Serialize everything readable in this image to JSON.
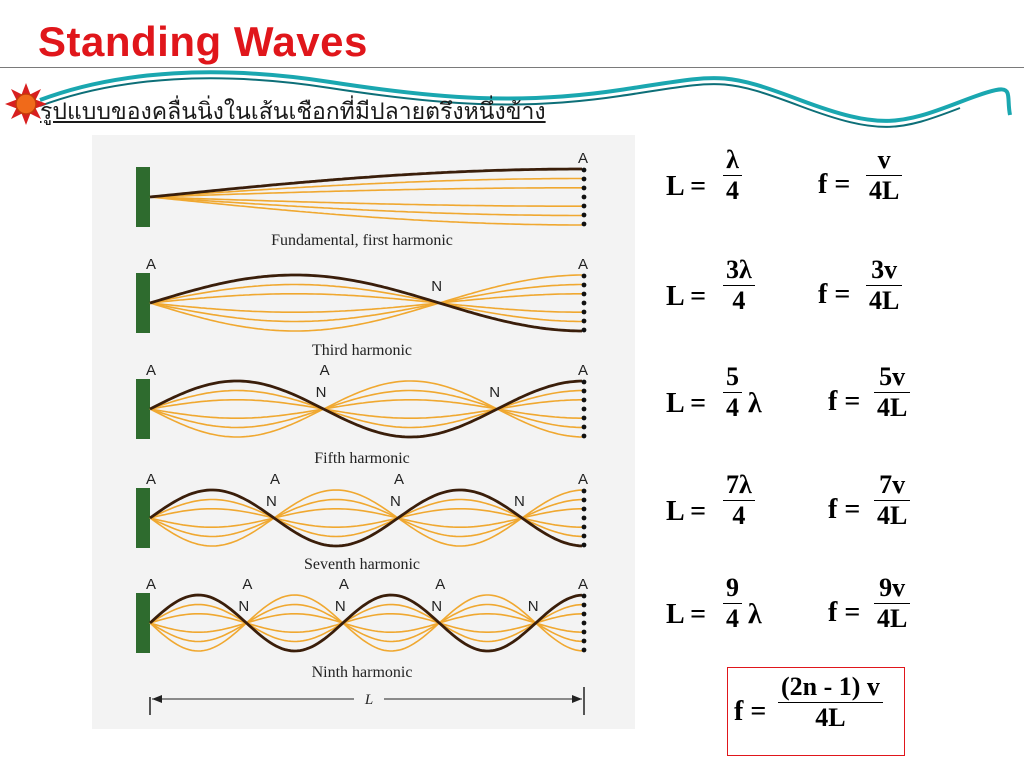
{
  "slide": {
    "title": "Standing Waves",
    "subtitle": "รูปแบบของคลื่นนิ่งในเส้นเชือกที่มีปลายตรึงหนึ่งข้าง",
    "accent_color": "#e0161b",
    "bullet_icon": "sun-icon",
    "decoration_icon": "teal-swirl-ribbon"
  },
  "diagram": {
    "harmonics": [
      {
        "caption": "Fundamental, first harmonic",
        "segments": 1,
        "labels": [
          "A"
        ]
      },
      {
        "caption": "Third harmonic",
        "segments": 3,
        "labels": [
          "A",
          "N",
          "A"
        ]
      },
      {
        "caption": "Fifth harmonic",
        "segments": 5,
        "labels": [
          "A",
          "N",
          "A",
          "N",
          "A"
        ]
      },
      {
        "caption": "Seventh harmonic",
        "segments": 7,
        "labels": [
          "A",
          "N",
          "A",
          "N",
          "A",
          "N",
          "A"
        ]
      },
      {
        "caption": "Ninth harmonic",
        "segments": 9,
        "labels": [
          "A",
          "N",
          "A",
          "N",
          "A",
          "N",
          "A",
          "N",
          "A"
        ]
      }
    ],
    "length_label": "L",
    "colors": {
      "wall": "#2e6b2e",
      "string": "#f0a830",
      "string_dark": "#3a1e0a",
      "dot": "#111111"
    }
  },
  "equations": [
    {
      "L_lhs": "L =",
      "L_num": "λ",
      "L_den": "4",
      "L_suffix": "",
      "f_lhs": "f =",
      "f_num": "v",
      "f_den": "4L"
    },
    {
      "L_lhs": "L =",
      "L_num": "3λ",
      "L_den": "4",
      "L_suffix": "",
      "f_lhs": "f =",
      "f_num": "3v",
      "f_den": "4L"
    },
    {
      "L_lhs": "L =",
      "L_num": "5",
      "L_den": "4",
      "L_suffix": "λ",
      "f_lhs": "f =",
      "f_num": "5v",
      "f_den": "4L"
    },
    {
      "L_lhs": "L =",
      "L_num": "7λ",
      "L_den": "4",
      "L_suffix": "",
      "f_lhs": "f =",
      "f_num": "7v",
      "f_den": "4L"
    },
    {
      "L_lhs": "L =",
      "L_num": "9",
      "L_den": "4",
      "L_suffix": "λ",
      "f_lhs": "f =",
      "f_num": "9v",
      "f_den": "4L"
    }
  ],
  "general": {
    "lhs": "f =",
    "num": "(2n - 1) v",
    "den": "4L"
  }
}
